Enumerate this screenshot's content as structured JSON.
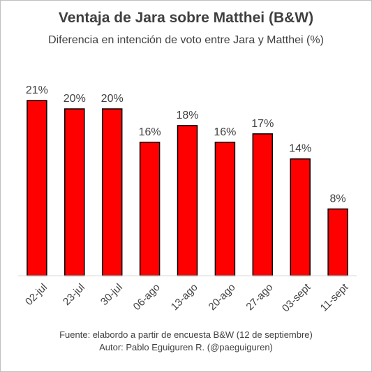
{
  "chart_data": {
    "type": "bar",
    "title": "Ventaja de Jara sobre Matthei (B&W)",
    "subtitle": "Diferencia en intención de voto entre Jara y Matthei (%)",
    "categories": [
      "02-jul",
      "23-jul",
      "30-jul",
      "06-ago",
      "13-ago",
      "20-ago",
      "27-ago",
      "03-sept",
      "11-sept"
    ],
    "values": [
      21,
      20,
      20,
      16,
      18,
      16,
      17,
      14,
      8
    ],
    "data_labels": [
      "21%",
      "20%",
      "20%",
      "16%",
      "18%",
      "16%",
      "17%",
      "14%",
      "8%"
    ],
    "xlabel": "",
    "ylabel": "",
    "ylim": [
      0,
      21
    ],
    "grid": false,
    "legend": "none",
    "bar_color": "#ff0000",
    "bar_edge_color": "#000000"
  },
  "footer": {
    "source": "Fuente: elabordo a partir de encuesta B&W (12 de septiembre)",
    "author": "Autor: Pablo Eguiguren R. (@paeguiguren)"
  }
}
